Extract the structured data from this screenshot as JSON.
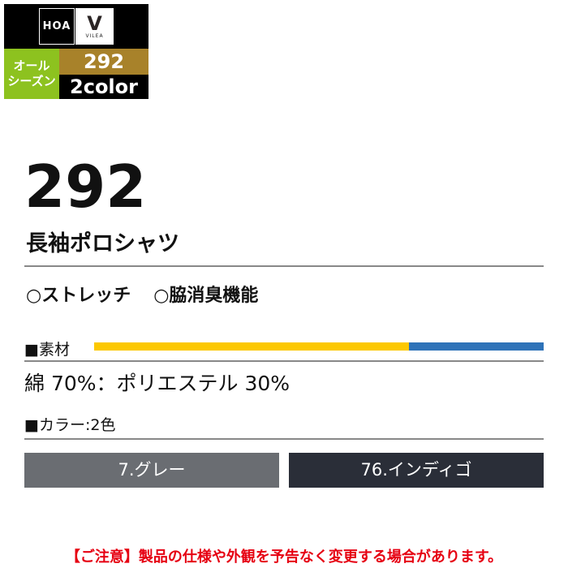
{
  "badge": {
    "brand_logo": "HOA",
    "vilea_logo": "V",
    "vilea_text": "VILEA",
    "season_line1": "オール",
    "season_line2": "シーズン",
    "model": "292",
    "colors": "2color",
    "season_color": "#8dc21f",
    "model_color": "#a8822a"
  },
  "product": {
    "number": "292",
    "name": "長袖ポロシャツ",
    "features": [
      "○ストレッチ",
      "○脇消臭機能"
    ]
  },
  "material": {
    "label": "■素材",
    "text": "綿 70%：ポリエステル 30%",
    "composition": [
      {
        "name": "綿",
        "percent": 70,
        "color": "#fcc800"
      },
      {
        "name": "ポリエステル",
        "percent": 30,
        "color": "#2e72b8"
      }
    ]
  },
  "colors": {
    "label": "■カラー:2色",
    "items": [
      {
        "name": "7.グレー",
        "hex": "#6a6d72"
      },
      {
        "name": "76.インディゴ",
        "hex": "#2a2e38"
      }
    ]
  },
  "notice": "【ご注意】製品の仕様や外観を予告なく変更する場合があります。"
}
